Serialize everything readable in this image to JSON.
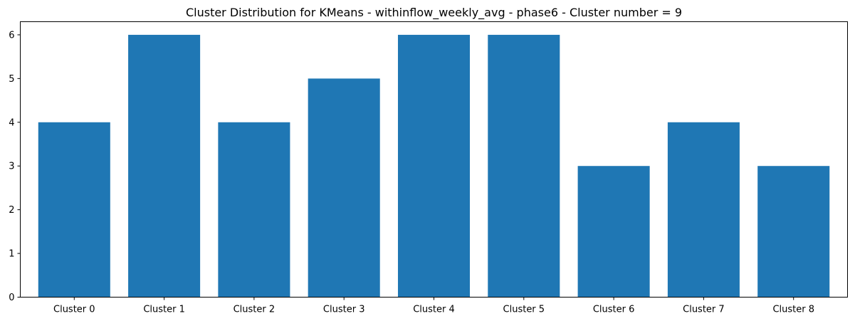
{
  "chart_data": {
    "type": "bar",
    "title": "Cluster Distribution for KMeans - withinflow_weekly_avg - phase6 - Cluster number = 9",
    "xlabel": "",
    "ylabel": "",
    "categories": [
      "Cluster 0",
      "Cluster 1",
      "Cluster 2",
      "Cluster 3",
      "Cluster 4",
      "Cluster 5",
      "Cluster 6",
      "Cluster 7",
      "Cluster 8"
    ],
    "values": [
      4,
      6,
      4,
      5,
      6,
      6,
      3,
      4,
      3
    ],
    "ylim": [
      0,
      6.3
    ],
    "yticks": [
      0,
      1,
      2,
      3,
      4,
      5,
      6
    ],
    "grid": false,
    "legend": "none",
    "bar_color": "#1f77b4"
  }
}
